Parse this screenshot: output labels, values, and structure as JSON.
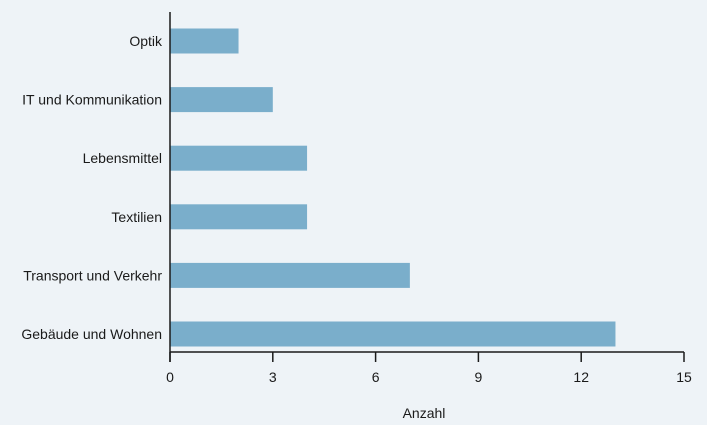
{
  "chart_data": {
    "type": "bar",
    "orientation": "horizontal",
    "categories": [
      "Optik",
      "IT und Kommunikation",
      "Lebensmittel",
      "Textilien",
      "Transport und Verkehr",
      "Gebäude und Wohnen"
    ],
    "values": [
      2,
      3,
      4,
      4,
      7,
      13
    ],
    "xlabel": "Anzahl",
    "ylabel": "",
    "xlim": [
      0,
      15
    ],
    "xticks": [
      0,
      3,
      6,
      9,
      12,
      15
    ],
    "grid": false,
    "colors": {
      "bar": "#7aaecb",
      "axis": "#1a1a1a",
      "background": "#eef3f7"
    }
  }
}
